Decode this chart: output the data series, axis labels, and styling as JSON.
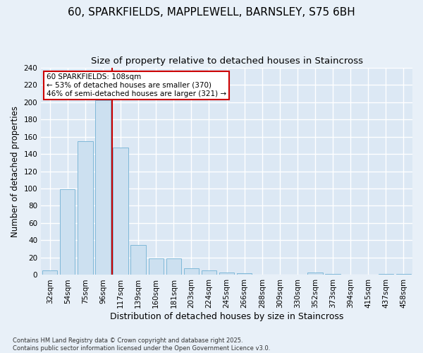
{
  "title": "60, SPARKFIELDS, MAPPLEWELL, BARNSLEY, S75 6BH",
  "subtitle": "Size of property relative to detached houses in Staincross",
  "xlabel": "Distribution of detached houses by size in Staincross",
  "ylabel": "Number of detached properties",
  "categories": [
    "32sqm",
    "54sqm",
    "75sqm",
    "96sqm",
    "117sqm",
    "139sqm",
    "160sqm",
    "181sqm",
    "203sqm",
    "224sqm",
    "245sqm",
    "266sqm",
    "288sqm",
    "309sqm",
    "330sqm",
    "352sqm",
    "373sqm",
    "394sqm",
    "415sqm",
    "437sqm",
    "458sqm"
  ],
  "values": [
    5,
    99,
    155,
    202,
    147,
    35,
    19,
    19,
    8,
    5,
    3,
    2,
    0,
    0,
    0,
    3,
    1,
    0,
    0,
    1,
    1
  ],
  "bar_color": "#cce0f0",
  "bar_edge_color": "#7fb8d8",
  "vline_color": "#cc0000",
  "annotation_line1": "60 SPARKFIELDS: 108sqm",
  "annotation_line2": "← 53% of detached houses are smaller (370)",
  "annotation_line3": "46% of semi-detached houses are larger (321) →",
  "annotation_box_color": "#ffffff",
  "annotation_box_edge": "#cc0000",
  "ylim": [
    0,
    240
  ],
  "yticks": [
    0,
    20,
    40,
    60,
    80,
    100,
    120,
    140,
    160,
    180,
    200,
    220,
    240
  ],
  "background_color": "#dce8f4",
  "grid_color": "#ffffff",
  "fig_background": "#e8f0f8",
  "footnote": "Contains HM Land Registry data © Crown copyright and database right 2025.\nContains public sector information licensed under the Open Government Licence v3.0.",
  "title_fontsize": 11,
  "subtitle_fontsize": 9.5,
  "xlabel_fontsize": 9,
  "ylabel_fontsize": 8.5,
  "tick_fontsize": 7.5,
  "annot_fontsize": 7.5,
  "footnote_fontsize": 6
}
